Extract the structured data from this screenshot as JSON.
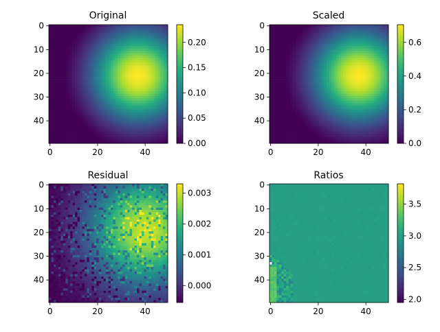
{
  "chart_data": [
    {
      "type": "heatmap",
      "title": "Original",
      "grid_size": [
        50,
        50
      ],
      "xticks": [
        0,
        20,
        40
      ],
      "yticks": [
        0,
        10,
        20,
        30,
        40
      ],
      "colorbar": {
        "range": [
          0.0,
          0.235
        ],
        "ticks": [
          "0.00",
          "0.05",
          "0.10",
          "0.15",
          "0.20"
        ],
        "tick_values": [
          0.0,
          0.05,
          0.1,
          0.15,
          0.2
        ]
      },
      "colormap": "viridis",
      "field": {
        "kind": "gaussian",
        "center": [
          37,
          21
        ],
        "sigma": 14,
        "offset": -0.0227,
        "amplitude": 0.2577
      }
    },
    {
      "type": "heatmap",
      "title": "Scaled",
      "grid_size": [
        50,
        50
      ],
      "xticks": [
        0,
        20,
        40
      ],
      "yticks": [
        0,
        10,
        20,
        30,
        40
      ],
      "colorbar": {
        "range": [
          0.0,
          0.705
        ],
        "ticks": [
          "0.0",
          "0.2",
          "0.4",
          "0.6"
        ],
        "tick_values": [
          0.0,
          0.2,
          0.4,
          0.6
        ]
      },
      "colormap": "viridis",
      "field": {
        "kind": "gaussian",
        "center": [
          37,
          21
        ],
        "sigma": 14,
        "offset": -0.068,
        "amplitude": 0.773
      }
    },
    {
      "type": "heatmap",
      "title": "Residual",
      "grid_size": [
        50,
        50
      ],
      "xticks": [
        0,
        20,
        40
      ],
      "yticks": [
        0,
        10,
        20,
        30,
        40
      ],
      "colorbar": {
        "range": [
          -0.00055,
          0.0033
        ],
        "ticks": [
          "0.000",
          "0.001",
          "0.002",
          "0.003"
        ],
        "tick_values": [
          0.0,
          0.001,
          0.002,
          0.003
        ]
      },
      "colormap": "viridis",
      "field": {
        "kind": "gaussian_noisy",
        "center": [
          40,
          19
        ],
        "sigma": 17,
        "offset": -0.0006,
        "amplitude": 0.0036,
        "noise": 0.0006
      }
    },
    {
      "type": "heatmap",
      "title": "Ratios",
      "grid_size": [
        50,
        50
      ],
      "xticks": [
        0,
        20,
        40
      ],
      "yticks": [
        0,
        10,
        20,
        30,
        40
      ],
      "colorbar": {
        "range": [
          1.95,
          3.82
        ],
        "ticks": [
          "2.0",
          "2.5",
          "3.0",
          "3.5"
        ],
        "tick_values": [
          2.0,
          2.5,
          3.0,
          3.5
        ]
      },
      "colormap": "viridis",
      "field": {
        "kind": "ratio",
        "base": 3.0,
        "corner_value": 3.4,
        "low_value": 2.5
      }
    }
  ]
}
